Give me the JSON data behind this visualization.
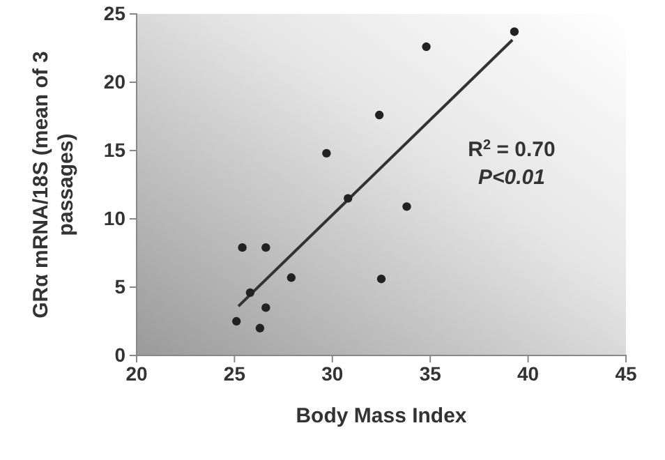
{
  "chart_data": {
    "type": "scatter",
    "xlabel": "Body Mass Index",
    "ylabel": "GRα mRNA/18S (mean of 3 passages)",
    "xlim": [
      20,
      45
    ],
    "xticks": [
      20,
      25,
      30,
      35,
      40,
      45
    ],
    "ylim": [
      0,
      25
    ],
    "yticks": [
      0,
      5,
      10,
      15,
      20,
      25
    ],
    "grid": false,
    "annotations": [
      "R$^{2}$ = 0.70",
      "P<0.01"
    ],
    "series": [
      {
        "marker": "circle",
        "color": "#222222",
        "x": [
          25.4,
          26.6,
          25.1,
          26.3,
          26.6,
          25.8,
          27.9,
          29.7,
          30.8,
          32.4,
          32.5,
          33.8,
          34.8,
          39.3
        ],
        "values": [
          7.9,
          7.9,
          2.5,
          2.0,
          3.5,
          4.6,
          5.7,
          14.8,
          11.5,
          17.6,
          5.6,
          10.9,
          22.6,
          23.7
        ]
      },
      {
        "type": "line",
        "marker": "none",
        "color": "#333333",
        "x": [
          25.2,
          39.2
        ],
        "values": [
          3.6,
          23.1
        ]
      }
    ]
  }
}
